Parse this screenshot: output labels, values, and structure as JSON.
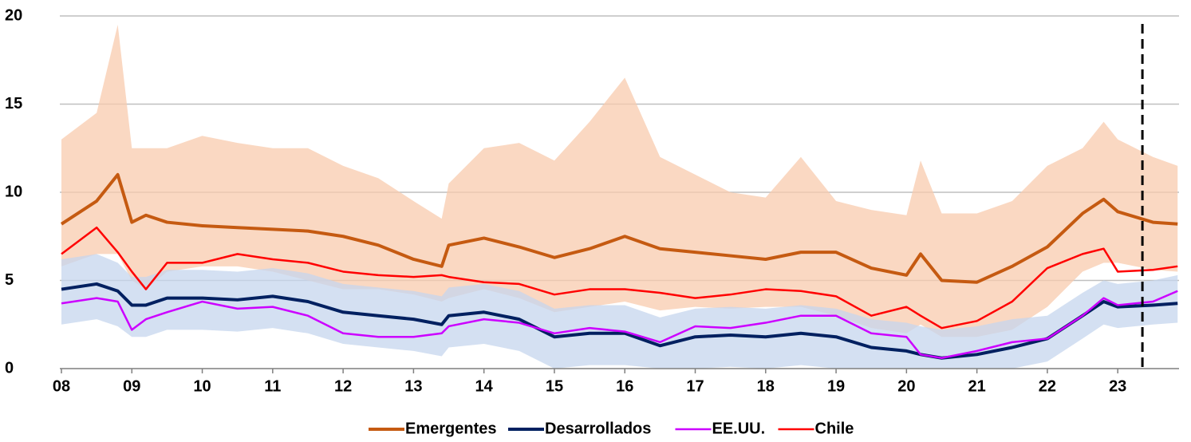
{
  "chart_data": {
    "type": "line",
    "x": [
      8.0,
      8.5,
      8.8,
      9.0,
      9.2,
      9.5,
      10,
      10.5,
      11,
      11.5,
      12,
      12.5,
      13,
      13.4,
      13.5,
      14,
      14.5,
      15,
      15.5,
      16,
      16.5,
      17,
      17.5,
      18,
      18.5,
      19,
      19.5,
      20,
      20.2,
      20.5,
      21,
      21.5,
      22,
      22.5,
      22.8,
      23,
      23.5,
      23.85
    ],
    "bands": [
      {
        "color": "#f8cbad",
        "upper": [
          13,
          14.5,
          19.5,
          12.5,
          12.5,
          12.5,
          13.2,
          12.8,
          12.5,
          12.5,
          11.5,
          10.8,
          9.5,
          8.5,
          10.5,
          12.5,
          12.8,
          11.8,
          14,
          16.5,
          12,
          11,
          10,
          9.7,
          12,
          9.5,
          9.0,
          8.7,
          11.8,
          8.8,
          8.8,
          9.5,
          11.5,
          12.5,
          14,
          13,
          12,
          11.5
        ],
        "lower": [
          5.8,
          6.5,
          6.5,
          5.0,
          4.5,
          5.5,
          5.8,
          5.8,
          5.5,
          5.0,
          4.5,
          4.5,
          4.2,
          3.8,
          4.0,
          4.5,
          4.0,
          3.2,
          3.5,
          3.8,
          3.3,
          3.5,
          3.4,
          3.5,
          3.5,
          3.0,
          2.3,
          2.0,
          2.5,
          1.8,
          1.8,
          2.2,
          3.5,
          5.5,
          6.0,
          6.0,
          5.6,
          5.5
        ]
      },
      {
        "color": "#c5d5ee",
        "upper": [
          6.2,
          6.5,
          6.0,
          5.2,
          5.2,
          5.6,
          5.6,
          5.5,
          5.7,
          5.4,
          4.8,
          4.6,
          4.4,
          4.1,
          4.6,
          4.8,
          4.4,
          3.4,
          3.6,
          3.6,
          2.9,
          3.4,
          3.5,
          3.4,
          3.6,
          3.4,
          2.8,
          2.6,
          2.4,
          2.2,
          2.4,
          2.8,
          3.0,
          4.3,
          5.0,
          4.8,
          5.0,
          5.3
        ],
        "lower": [
          2.5,
          2.8,
          2.4,
          1.8,
          1.8,
          2.2,
          2.2,
          2.1,
          2.3,
          2.0,
          1.4,
          1.2,
          1.0,
          0.7,
          1.2,
          1.4,
          1.0,
          0,
          0.2,
          0.2,
          0,
          0,
          0.1,
          0,
          0.2,
          0,
          0,
          0,
          0,
          0,
          0,
          0,
          0.4,
          1.7,
          2.5,
          2.3,
          2.5,
          2.6
        ]
      }
    ],
    "series": [
      {
        "name": "Emergentes",
        "color": "#c55a11",
        "width": 4,
        "values": [
          8.2,
          9.5,
          11,
          8.3,
          8.7,
          8.3,
          8.1,
          8.0,
          7.9,
          7.8,
          7.5,
          7.0,
          6.2,
          5.8,
          7.0,
          7.4,
          6.9,
          6.3,
          6.8,
          7.5,
          6.8,
          6.6,
          6.4,
          6.2,
          6.6,
          6.6,
          5.7,
          5.3,
          6.5,
          5.0,
          4.9,
          5.8,
          6.9,
          8.8,
          9.6,
          8.9,
          8.3,
          8.2
        ]
      },
      {
        "name": "Desarrollados",
        "color": "#002060",
        "width": 4,
        "values": [
          4.5,
          4.8,
          4.4,
          3.6,
          3.6,
          4.0,
          4.0,
          3.9,
          4.1,
          3.8,
          3.2,
          3.0,
          2.8,
          2.5,
          3.0,
          3.2,
          2.8,
          1.8,
          2.0,
          2.0,
          1.3,
          1.8,
          1.9,
          1.8,
          2.0,
          1.8,
          1.2,
          1.0,
          0.8,
          0.6,
          0.8,
          1.2,
          1.7,
          3.0,
          3.8,
          3.5,
          3.6,
          3.7
        ]
      },
      {
        "name": "EE.UU.",
        "color": "#cc00ff",
        "width": 2.5,
        "values": [
          3.7,
          4.0,
          3.8,
          2.2,
          2.8,
          3.2,
          3.8,
          3.4,
          3.5,
          3.0,
          2.0,
          1.8,
          1.8,
          2.0,
          2.4,
          2.8,
          2.6,
          2.0,
          2.3,
          2.1,
          1.5,
          2.4,
          2.3,
          2.6,
          3.0,
          3.0,
          2.0,
          1.8,
          0.8,
          0.6,
          1.0,
          1.5,
          1.7,
          3.0,
          4.0,
          3.6,
          3.8,
          4.4
        ]
      },
      {
        "name": "Chile",
        "color": "#ff0000",
        "width": 2.5,
        "values": [
          6.5,
          8.0,
          6.6,
          5.5,
          4.5,
          6.0,
          6.0,
          6.5,
          6.2,
          6.0,
          5.5,
          5.3,
          5.2,
          5.3,
          5.2,
          4.9,
          4.8,
          4.2,
          4.5,
          4.5,
          4.3,
          4.0,
          4.2,
          4.5,
          4.4,
          4.1,
          3.0,
          3.5,
          3.0,
          2.3,
          2.7,
          3.8,
          5.7,
          6.5,
          6.8,
          5.5,
          5.6,
          5.8
        ]
      }
    ],
    "xlim": [
      8,
      23.87
    ],
    "xticks": [
      {
        "value": 8,
        "label": "08"
      },
      {
        "value": 9,
        "label": "09"
      },
      10,
      11,
      12,
      13,
      14,
      15,
      16,
      17,
      18,
      19,
      20,
      21,
      22,
      23
    ],
    "ylim": [
      0,
      20
    ],
    "yticks": [
      0,
      5,
      10,
      15,
      20
    ],
    "vline": 23.35,
    "grid": true,
    "legend": "bottom"
  }
}
